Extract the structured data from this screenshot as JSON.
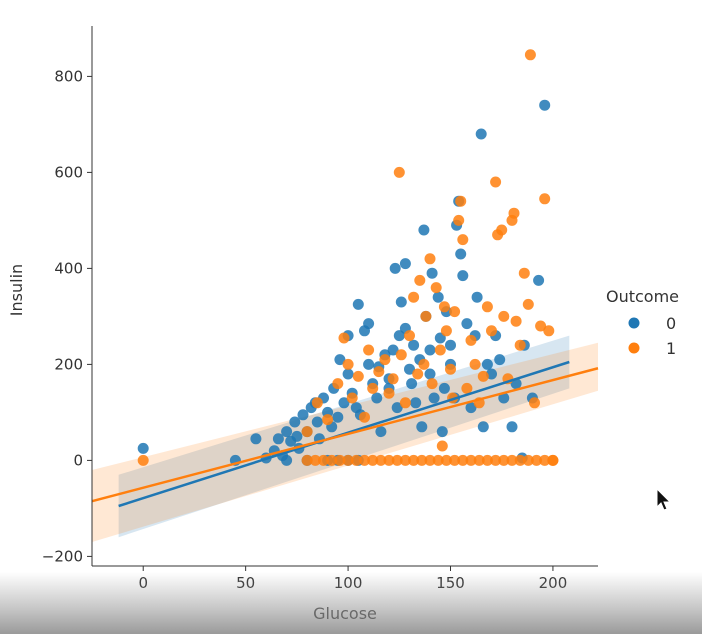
{
  "chart_data": {
    "type": "scatter",
    "xlabel": "Glucose",
    "ylabel": "Insulin",
    "xlim": [
      -25,
      222
    ],
    "ylim": [
      -220,
      905
    ],
    "xticks": [
      "0",
      "50",
      "100",
      "150",
      "200"
    ],
    "yticks": [
      "−200",
      "0",
      "200",
      "400",
      "600",
      "800"
    ],
    "legend": {
      "title": "Outcome",
      "position": "right"
    },
    "series": [
      {
        "name": "0",
        "color": "#1f77b4",
        "regression": {
          "x": [
            -12,
            208
          ],
          "y": [
            -95,
            205
          ],
          "ci_lower_left": -30,
          "ci_upper_left": -160,
          "ci_lower_right": 150,
          "ci_upper_right": 260
        },
        "points": [
          [
            0,
            25
          ],
          [
            45,
            0
          ],
          [
            55,
            45
          ],
          [
            60,
            5
          ],
          [
            64,
            20
          ],
          [
            66,
            45
          ],
          [
            68,
            10
          ],
          [
            70,
            60
          ],
          [
            72,
            40
          ],
          [
            74,
            80
          ],
          [
            75,
            50
          ],
          [
            76,
            25
          ],
          [
            78,
            95
          ],
          [
            80,
            60
          ],
          [
            82,
            110
          ],
          [
            84,
            120
          ],
          [
            85,
            80
          ],
          [
            86,
            45
          ],
          [
            88,
            130
          ],
          [
            90,
            100
          ],
          [
            92,
            70
          ],
          [
            93,
            150
          ],
          [
            95,
            90
          ],
          [
            96,
            210
          ],
          [
            98,
            120
          ],
          [
            100,
            260
          ],
          [
            100,
            180
          ],
          [
            102,
            140
          ],
          [
            104,
            110
          ],
          [
            105,
            325
          ],
          [
            106,
            95
          ],
          [
            108,
            270
          ],
          [
            110,
            285
          ],
          [
            110,
            200
          ],
          [
            112,
            160
          ],
          [
            114,
            130
          ],
          [
            115,
            195
          ],
          [
            116,
            60
          ],
          [
            118,
            220
          ],
          [
            120,
            170
          ],
          [
            120,
            150
          ],
          [
            122,
            230
          ],
          [
            123,
            400
          ],
          [
            124,
            110
          ],
          [
            125,
            260
          ],
          [
            126,
            330
          ],
          [
            128,
            410
          ],
          [
            128,
            275
          ],
          [
            130,
            190
          ],
          [
            131,
            160
          ],
          [
            132,
            240
          ],
          [
            133,
            120
          ],
          [
            135,
            210
          ],
          [
            136,
            70
          ],
          [
            137,
            480
          ],
          [
            138,
            300
          ],
          [
            140,
            180
          ],
          [
            140,
            230
          ],
          [
            141,
            390
          ],
          [
            142,
            130
          ],
          [
            144,
            340
          ],
          [
            145,
            255
          ],
          [
            146,
            60
          ],
          [
            147,
            150
          ],
          [
            148,
            310
          ],
          [
            150,
            200
          ],
          [
            150,
            240
          ],
          [
            152,
            130
          ],
          [
            153,
            490
          ],
          [
            154,
            540
          ],
          [
            155,
            430
          ],
          [
            156,
            385
          ],
          [
            158,
            285
          ],
          [
            160,
            110
          ],
          [
            162,
            260
          ],
          [
            163,
            340
          ],
          [
            165,
            680
          ],
          [
            166,
            70
          ],
          [
            168,
            200
          ],
          [
            170,
            180
          ],
          [
            172,
            260
          ],
          [
            174,
            210
          ],
          [
            176,
            130
          ],
          [
            180,
            70
          ],
          [
            182,
            160
          ],
          [
            186,
            240
          ],
          [
            190,
            130
          ],
          [
            193,
            375
          ],
          [
            196,
            740
          ],
          [
            185,
            5
          ],
          [
            100,
            0
          ],
          [
            90,
            0
          ],
          [
            95,
            0
          ],
          [
            105,
            0
          ],
          [
            70,
            0
          ],
          [
            80,
            0
          ]
        ]
      },
      {
        "name": "1",
        "color": "#ff7f0e",
        "regression": {
          "x": [
            -25,
            222
          ],
          "y": [
            -85,
            192
          ],
          "ci_lower_left": -20,
          "ci_upper_left": -170,
          "ci_lower_right": 145,
          "ci_upper_right": 245
        },
        "points": [
          [
            0,
            0
          ],
          [
            80,
            0
          ],
          [
            84,
            0
          ],
          [
            88,
            0
          ],
          [
            92,
            0
          ],
          [
            96,
            0
          ],
          [
            100,
            0
          ],
          [
            104,
            0
          ],
          [
            108,
            0
          ],
          [
            112,
            0
          ],
          [
            116,
            0
          ],
          [
            120,
            0
          ],
          [
            124,
            0
          ],
          [
            128,
            0
          ],
          [
            132,
            0
          ],
          [
            136,
            0
          ],
          [
            140,
            0
          ],
          [
            144,
            0
          ],
          [
            148,
            0
          ],
          [
            152,
            0
          ],
          [
            156,
            0
          ],
          [
            160,
            0
          ],
          [
            164,
            0
          ],
          [
            168,
            0
          ],
          [
            172,
            0
          ],
          [
            176,
            0
          ],
          [
            180,
            0
          ],
          [
            184,
            0
          ],
          [
            188,
            0
          ],
          [
            192,
            0
          ],
          [
            196,
            0
          ],
          [
            200,
            0
          ],
          [
            80,
            60
          ],
          [
            85,
            120
          ],
          [
            90,
            85
          ],
          [
            95,
            160
          ],
          [
            98,
            255
          ],
          [
            100,
            200
          ],
          [
            102,
            130
          ],
          [
            105,
            175
          ],
          [
            108,
            90
          ],
          [
            110,
            230
          ],
          [
            112,
            150
          ],
          [
            115,
            185
          ],
          [
            118,
            210
          ],
          [
            120,
            140
          ],
          [
            122,
            170
          ],
          [
            125,
            600
          ],
          [
            126,
            220
          ],
          [
            128,
            120
          ],
          [
            130,
            260
          ],
          [
            132,
            340
          ],
          [
            134,
            180
          ],
          [
            135,
            375
          ],
          [
            137,
            200
          ],
          [
            138,
            300
          ],
          [
            140,
            420
          ],
          [
            141,
            160
          ],
          [
            143,
            360
          ],
          [
            145,
            230
          ],
          [
            146,
            30
          ],
          [
            147,
            320
          ],
          [
            148,
            270
          ],
          [
            150,
            190
          ],
          [
            151,
            130
          ],
          [
            152,
            310
          ],
          [
            154,
            500
          ],
          [
            155,
            540
          ],
          [
            156,
            460
          ],
          [
            158,
            150
          ],
          [
            160,
            250
          ],
          [
            162,
            200
          ],
          [
            164,
            120
          ],
          [
            166,
            175
          ],
          [
            168,
            320
          ],
          [
            170,
            270
          ],
          [
            172,
            580
          ],
          [
            173,
            470
          ],
          [
            175,
            480
          ],
          [
            176,
            300
          ],
          [
            178,
            170
          ],
          [
            180,
            500
          ],
          [
            181,
            515
          ],
          [
            182,
            290
          ],
          [
            184,
            240
          ],
          [
            186,
            390
          ],
          [
            188,
            325
          ],
          [
            189,
            845
          ],
          [
            191,
            120
          ],
          [
            194,
            280
          ],
          [
            196,
            545
          ],
          [
            198,
            270
          ],
          [
            200,
            0
          ]
        ]
      }
    ]
  }
}
